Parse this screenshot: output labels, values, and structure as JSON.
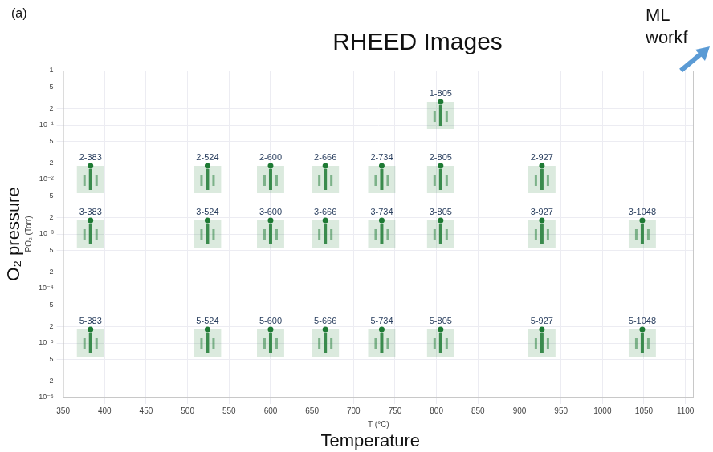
{
  "chart_data": {
    "type": "scatter",
    "title": "RHEED Images",
    "annotations": [
      "(a)",
      "ML",
      "workf"
    ],
    "xlabel": "T (°C)",
    "xlabel2": "Temperature",
    "ylabel": "PO₂ (Torr)",
    "ylabel2": "O₂ pressure",
    "x": [
      805,
      383,
      524,
      600,
      666,
      734,
      805,
      927,
      383,
      524,
      600,
      666,
      734,
      805,
      927,
      1048,
      383,
      524,
      600,
      666,
      734,
      805,
      927,
      1048
    ],
    "values": [
      0.15,
      0.01,
      0.01,
      0.01,
      0.01,
      0.01,
      0.01,
      0.01,
      0.001,
      0.001,
      0.001,
      0.001,
      0.001,
      0.001,
      0.001,
      0.001,
      1e-05,
      1e-05,
      1e-05,
      1e-05,
      1e-05,
      1e-05,
      1e-05,
      1e-05
    ],
    "labels": [
      "1-805",
      "2-383",
      "2-524",
      "2-600",
      "2-666",
      "2-734",
      "2-805",
      "2-927",
      "3-383",
      "3-524",
      "3-600",
      "3-666",
      "3-734",
      "3-805",
      "3-927",
      "3-1048",
      "5-383",
      "5-524",
      "5-600",
      "5-666",
      "5-734",
      "5-805",
      "5-927",
      "5-1048"
    ],
    "color": "#1e7a34",
    "marker": "square",
    "xlim": [
      350,
      1110
    ],
    "xticks": [
      350,
      400,
      450,
      500,
      550,
      600,
      650,
      700,
      750,
      800,
      850,
      900,
      950,
      1000,
      1050,
      1100
    ],
    "ylim": [
      1e-06,
      1
    ],
    "log": "y",
    "yticks": [
      {
        "value": 1e-06,
        "label": "10⁻⁶"
      },
      {
        "value": 2e-06,
        "label": "2"
      },
      {
        "value": 5e-06,
        "label": "5"
      },
      {
        "value": 1e-05,
        "label": "10⁻⁵"
      },
      {
        "value": 2e-05,
        "label": "2"
      },
      {
        "value": 5e-05,
        "label": "5"
      },
      {
        "value": 0.0001,
        "label": "10⁻⁴"
      },
      {
        "value": 0.0002,
        "label": "2"
      },
      {
        "value": 0.0005,
        "label": "5"
      },
      {
        "value": 0.001,
        "label": "10⁻³"
      },
      {
        "value": 0.002,
        "label": "2"
      },
      {
        "value": 0.005,
        "label": "5"
      },
      {
        "value": 0.01,
        "label": "10⁻²"
      },
      {
        "value": 0.02,
        "label": "2"
      },
      {
        "value": 0.05,
        "label": "5"
      },
      {
        "value": 0.1,
        "label": "10⁻¹"
      },
      {
        "value": 0.2,
        "label": "2"
      },
      {
        "value": 0.5,
        "label": "5"
      },
      {
        "value": 1,
        "label": "1"
      }
    ],
    "grid": true
  }
}
